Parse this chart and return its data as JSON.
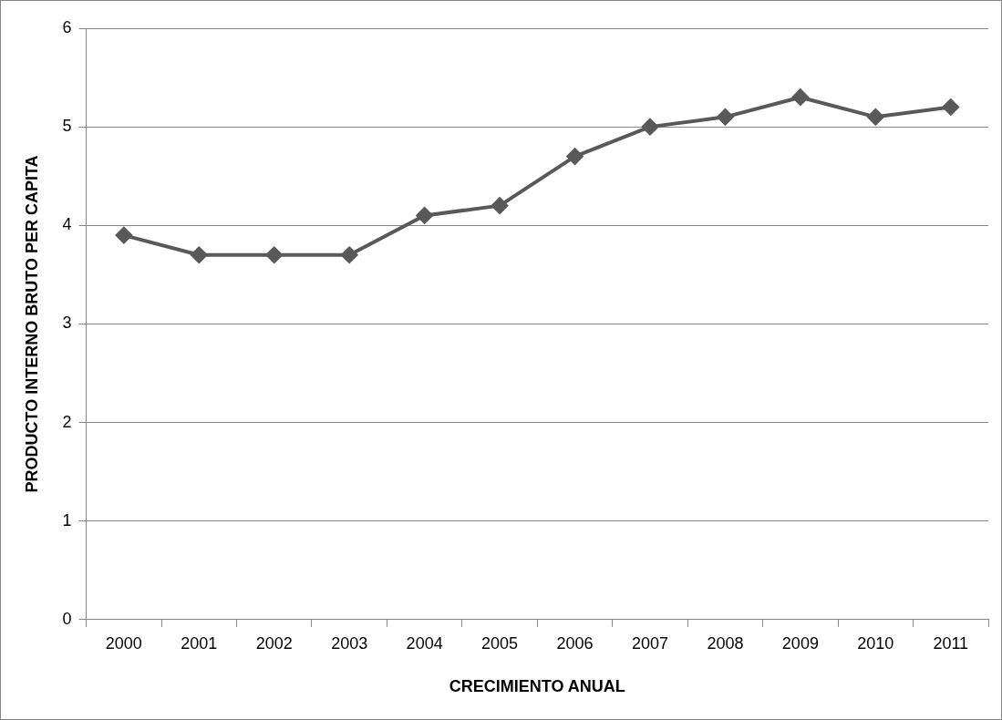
{
  "chart_data": {
    "type": "line",
    "xlabel": "CRECIMIENTO ANUAL",
    "ylabel": "PRODUCTO INTERNO BRUTO PER CAPITA",
    "categories": [
      "2000",
      "2001",
      "2002",
      "2003",
      "2004",
      "2005",
      "2006",
      "2007",
      "2008",
      "2009",
      "2010",
      "2011"
    ],
    "series": [
      {
        "color": "#595959",
        "values": [
          3.9,
          3.7,
          3.7,
          3.7,
          4.1,
          4.2,
          4.7,
          5.0,
          5.1,
          5.3,
          5.1,
          5.2
        ]
      }
    ],
    "ylim": [
      0,
      6
    ],
    "yticks": [
      0,
      1,
      2,
      3,
      4,
      5,
      6
    ],
    "grid": "y",
    "legend": false,
    "marker": "diamond",
    "line_style": "solid"
  }
}
